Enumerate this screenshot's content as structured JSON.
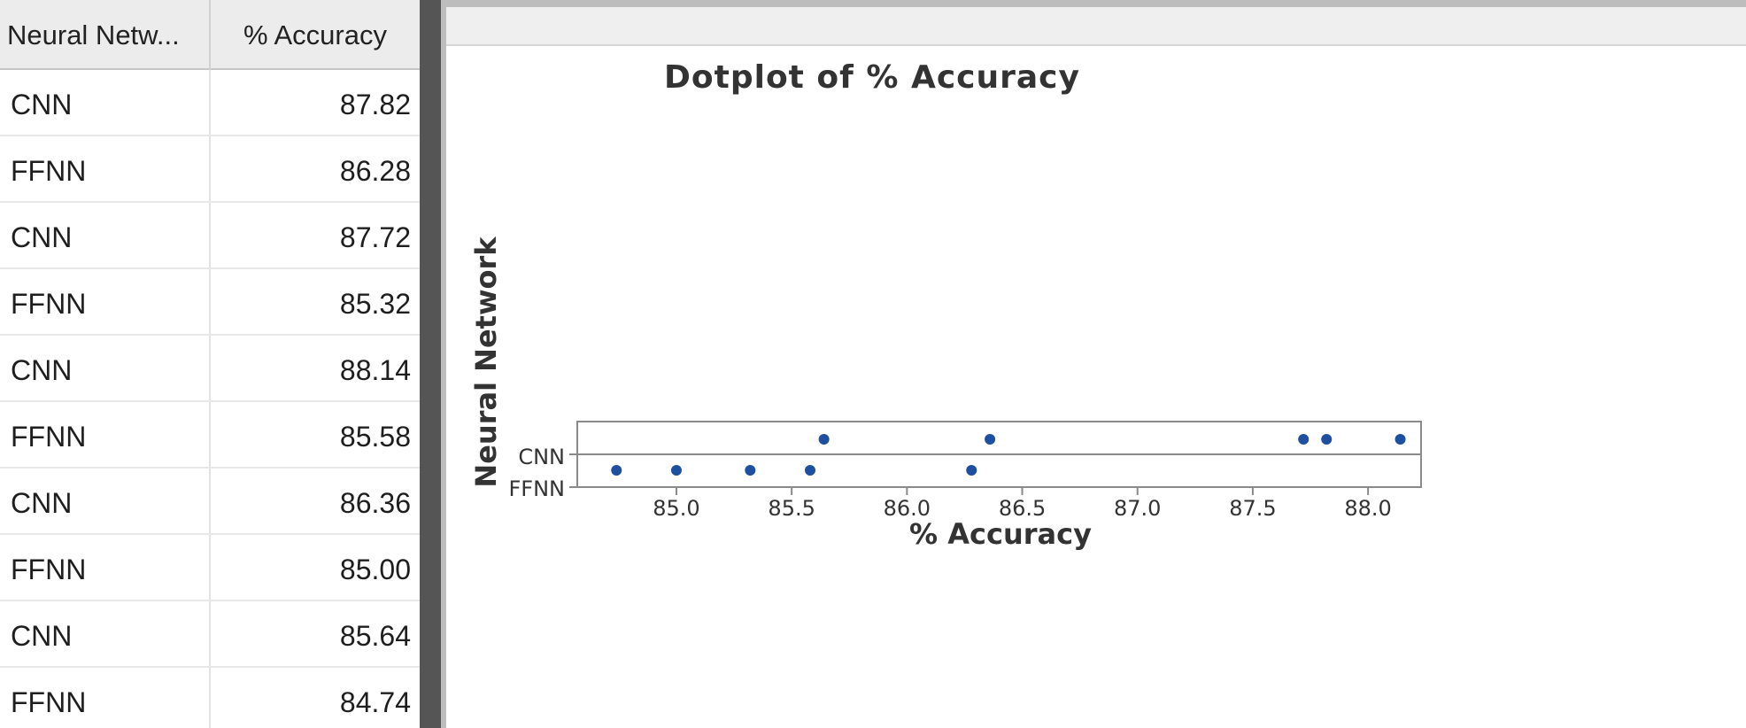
{
  "grid": {
    "columns": [
      "Neural Netw...",
      "% Accuracy"
    ],
    "rows": [
      {
        "network": "CNN",
        "accuracy": "87.82"
      },
      {
        "network": "FFNN",
        "accuracy": "86.28"
      },
      {
        "network": "CNN",
        "accuracy": "87.72"
      },
      {
        "network": "FFNN",
        "accuracy": "85.32"
      },
      {
        "network": "CNN",
        "accuracy": "88.14"
      },
      {
        "network": "FFNN",
        "accuracy": "85.58"
      },
      {
        "network": "CNN",
        "accuracy": "86.36"
      },
      {
        "network": "FFNN",
        "accuracy": "85.00"
      },
      {
        "network": "CNN",
        "accuracy": "85.64"
      },
      {
        "network": "FFNN",
        "accuracy": "84.74"
      }
    ]
  },
  "chart_data": {
    "type": "scatter",
    "title": "Dotplot of % Accuracy",
    "xlabel": "% Accuracy",
    "ylabel": "Neural Network",
    "categories": [
      "CNN",
      "FFNN"
    ],
    "xlim": [
      84.57,
      88.23
    ],
    "xticks": [
      "85.0",
      "85.5",
      "86.0",
      "86.5",
      "87.0",
      "87.5",
      "88.0"
    ],
    "series": [
      {
        "name": "CNN",
        "values": [
          87.82,
          87.72,
          88.14,
          86.36,
          85.64
        ]
      },
      {
        "name": "FFNN",
        "values": [
          86.28,
          85.32,
          85.58,
          85.0,
          84.74
        ]
      }
    ],
    "marker_color": "#1f4fa0",
    "grid": false,
    "legend": "none"
  }
}
